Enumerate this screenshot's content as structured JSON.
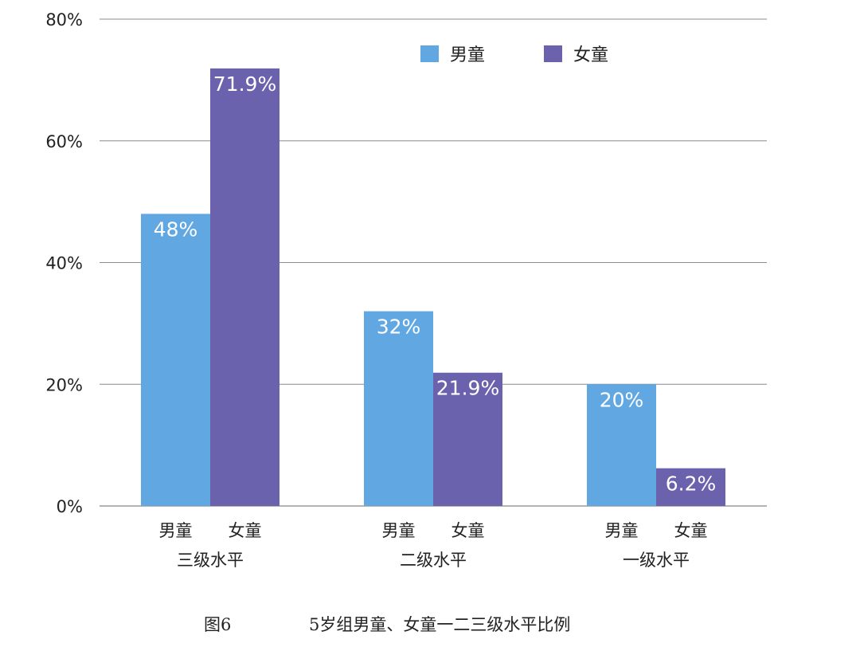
{
  "chart_data": {
    "type": "bar",
    "ylim": [
      0,
      80
    ],
    "yticks": [
      "0%",
      "20%",
      "40%",
      "60%",
      "80%"
    ],
    "grid": true,
    "legend_position": "top-right",
    "colors": {
      "boys": "#61a8e3",
      "girls": "#6a62ad"
    },
    "series_names": [
      "男童",
      "女童"
    ],
    "groups": [
      {
        "label": "三级水平",
        "sub_labels": [
          "男童",
          "女童"
        ],
        "values": [
          48,
          71.9
        ],
        "data_labels": [
          "48%",
          "71.9%"
        ]
      },
      {
        "label": "二级水平",
        "sub_labels": [
          "男童",
          "女童"
        ],
        "values": [
          32,
          21.9
        ],
        "data_labels": [
          "32%",
          "21.9%"
        ]
      },
      {
        "label": "一级水平",
        "sub_labels": [
          "男童",
          "女童"
        ],
        "values": [
          20,
          6.2
        ],
        "data_labels": [
          "20%",
          "6.2%"
        ]
      }
    ]
  },
  "caption": {
    "number": "图6",
    "title": "5岁组男童、女童一二三级水平比例"
  }
}
